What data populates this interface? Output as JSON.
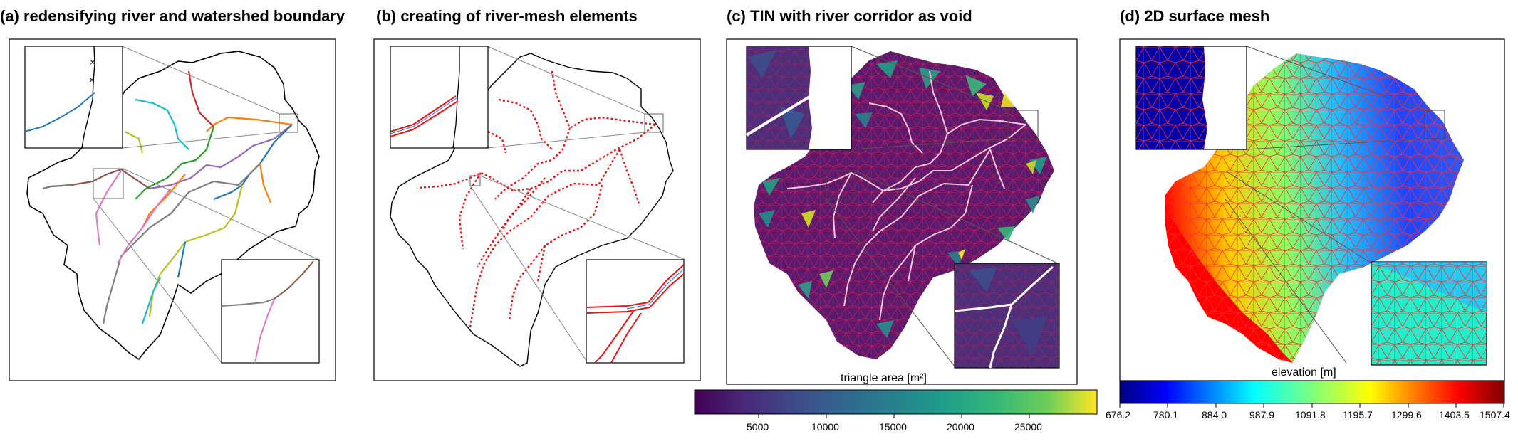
{
  "panels": {
    "a": {
      "title": "(a) redensifying river and watershed boundary"
    },
    "b": {
      "title": "(b) creating of river-mesh elements"
    },
    "c": {
      "title": "(c) TIN with river corridor as void"
    },
    "d": {
      "title": "(d) 2D surface mesh"
    }
  },
  "colorbars": {
    "area": {
      "label": "triangle area [m²]",
      "ticks": [
        "5000",
        "10000",
        "15000",
        "20000",
        "25000"
      ],
      "colormap": "viridis"
    },
    "elevation": {
      "label": "elevation [m]",
      "ticks": [
        "676.2",
        "780.1",
        "884.0",
        "987.9",
        "1091.8",
        "1195.7",
        "1299.6",
        "1403.5",
        "1507.4"
      ],
      "colormap": "jet"
    }
  },
  "colors": {
    "river_mesh": "#ee1111",
    "boundary": "#000000",
    "river_palette": [
      "#1f77b4",
      "#ff7f0e",
      "#2ca02c",
      "#d62728",
      "#9467bd",
      "#8c564b",
      "#e377c2",
      "#7f7f7f",
      "#bcbd22",
      "#17becf"
    ]
  }
}
